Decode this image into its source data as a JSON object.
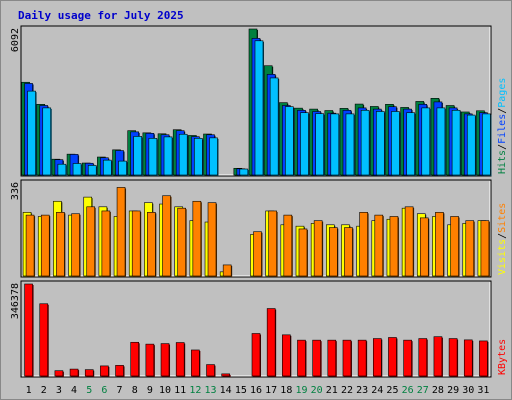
{
  "chart_data": {
    "type": "bar",
    "title": "Daily usage for July 2025",
    "days": [
      "1",
      "2",
      "3",
      "4",
      "5",
      "6",
      "7",
      "8",
      "9",
      "10",
      "11",
      "12",
      "13",
      "14",
      "15",
      "16",
      "17",
      "18",
      "19",
      "20",
      "21",
      "22",
      "23",
      "24",
      "25",
      "26",
      "27",
      "28",
      "29",
      "30",
      "31"
    ],
    "weekend_days": [
      "5",
      "6",
      "12",
      "13",
      "19",
      "20",
      "26",
      "27"
    ],
    "colors": {
      "title": "#0000cc",
      "weekday": "#000000",
      "weekend": "#008040",
      "hits": "#008040",
      "files": "#0040ff",
      "pages": "#00c0ff",
      "visits": "#ffff00",
      "sites": "#ff8000",
      "kbytes": "#ff0000",
      "plot_bg": "#c0c0c0"
    },
    "panels": [
      {
        "name": "hits-files-pages",
        "ymax_label": "6092",
        "ylim": [
          0,
          6092
        ],
        "legend": [
          {
            "text": "Hits",
            "color": "#008040"
          },
          {
            "text": "/",
            "color": "#000000"
          },
          {
            "text": "Files",
            "color": "#0040ff"
          },
          {
            "text": "/",
            "color": "#000000"
          },
          {
            "text": "Pages",
            "color": "#00c0ff"
          }
        ],
        "series": [
          {
            "name": "Hits",
            "color": "#008040",
            "values": [
              3870,
              2950,
              660,
              870,
              500,
              750,
              1050,
              1850,
              1760,
              1720,
              1890,
              1650,
              1710,
              0,
              280,
              6092,
              4560,
              3020,
              2790,
              2750,
              2690,
              2780,
              2960,
              2860,
              2950,
              2820,
              3070,
              3200,
              2900,
              2630,
              2680
            ]
          },
          {
            "name": "Files",
            "color": "#0040ff",
            "values": [
              3820,
              2900,
              640,
              860,
              490,
              720,
              1020,
              1800,
              1740,
              1680,
              1850,
              1600,
              1680,
              0,
              260,
              5700,
              4200,
              2900,
              2700,
              2650,
              2580,
              2700,
              2800,
              2750,
              2850,
              2750,
              2950,
              3050,
              2800,
              2550,
              2600
            ]
          },
          {
            "name": "Pages",
            "color": "#00c0ff",
            "values": [
              3500,
              2800,
              450,
              480,
              400,
              620,
              580,
              1610,
              1530,
              1590,
              1700,
              1530,
              1550,
              0,
              250,
              5600,
              4050,
              2850,
              2600,
              2560,
              2550,
              2550,
              2700,
              2650,
              2650,
              2600,
              2800,
              2800,
              2700,
              2500,
              2550
            ]
          }
        ]
      },
      {
        "name": "visits-sites",
        "ymax_label": "336",
        "ylim": [
          0,
          336
        ],
        "legend": [
          {
            "text": "Visits",
            "color": "#ffff00"
          },
          {
            "text": "/",
            "color": "#000000"
          },
          {
            "text": "Sites",
            "color": "#ff8000"
          }
        ],
        "series": [
          {
            "name": "Visits",
            "color": "#ffff00",
            "values": [
              230,
              215,
              270,
              220,
              285,
              250,
              215,
              235,
              265,
              260,
              250,
              200,
              195,
              15,
              0,
              150,
              235,
              185,
              180,
              190,
              185,
              185,
              180,
              200,
              205,
              245,
              225,
              215,
              185,
              190,
              200
            ]
          },
          {
            "name": "Sites",
            "color": "#ff8000",
            "values": [
              220,
              220,
              230,
              225,
              250,
              235,
              320,
              235,
              230,
              290,
              245,
              270,
              265,
              40,
              0,
              160,
              235,
              220,
              170,
              200,
              175,
              175,
              230,
              220,
              215,
              250,
              210,
              230,
              215,
              200,
              200
            ]
          }
        ]
      },
      {
        "name": "kbytes",
        "ymax_label": "346378",
        "ylim": [
          0,
          346378
        ],
        "legend": [
          {
            "text": "KBytes",
            "color": "#ff0000"
          }
        ],
        "series": [
          {
            "name": "KBytes",
            "color": "#ff0000",
            "values": [
              346378,
              272000,
              20000,
              26000,
              24000,
              38000,
              40000,
              127000,
              120000,
              122000,
              126000,
              98000,
              43000,
              8000,
              0,
              160000,
              254000,
              155000,
              135000,
              135000,
              135000,
              135000,
              135000,
              141000,
              145000,
              135000,
              141000,
              148000,
              141000,
              136000,
              132000
            ]
          }
        ]
      }
    ]
  }
}
